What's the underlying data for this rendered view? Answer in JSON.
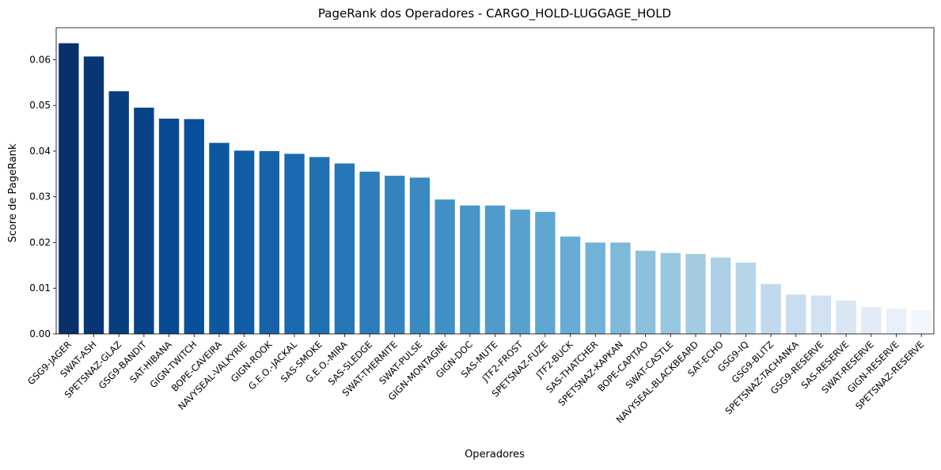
{
  "chart_data": {
    "type": "bar",
    "title": "PageRank dos Operadores - CARGO_HOLD-LUGGAGE_HOLD",
    "xlabel": "Operadores",
    "ylabel": "Score de PageRank",
    "ylim": [
      0,
      0.067
    ],
    "yticks": [
      "0.00",
      "0.01",
      "0.02",
      "0.03",
      "0.04",
      "0.05",
      "0.06"
    ],
    "grid": false,
    "legend": "none",
    "palette": "Blues_r",
    "categories": [
      "GSG9-JAGER",
      "SWAT-ASH",
      "SPETSNAZ-GLAZ",
      "GSG9-BANDIT",
      "SAT-HIBANA",
      "GIGN-TWITCH",
      "BOPE-CAVEIRA",
      "NAVYSEAL-VALKYRIE",
      "GIGN-ROOK",
      "G.E.O.-JACKAL",
      "SAS-SMOKE",
      "G.E.O.-MIRA",
      "SAS-SLEDGE",
      "SWAT-THERMITE",
      "SWAT-PULSE",
      "GIGN-MONTAGNE",
      "GIGN-DOC",
      "SAS-MUTE",
      "JTF2-FROST",
      "SPETSNAZ-FUZE",
      "JTF2-BUCK",
      "SAS-THATCHER",
      "SPETSNAZ-KAPKAN",
      "BOPE-CAPITAO",
      "SWAT-CASTLE",
      "NAVYSEAL-BLACKBEARD",
      "SAT-ECHO",
      "GSG9-IQ",
      "GSG9-BLITZ",
      "SPETSNAZ-TACHANKA",
      "GSG9-RESERVE",
      "SAS-RESERVE",
      "SWAT-RESERVE",
      "GIGN-RESERVE",
      "SPETSNAZ-RESERVE"
    ],
    "values": [
      0.0636,
      0.0607,
      0.0531,
      0.0495,
      0.0471,
      0.047,
      0.0418,
      0.0401,
      0.04,
      0.0394,
      0.0387,
      0.0373,
      0.0355,
      0.0346,
      0.0342,
      0.0294,
      0.0281,
      0.0281,
      0.0272,
      0.0267,
      0.0213,
      0.02,
      0.02,
      0.0182,
      0.0177,
      0.0175,
      0.0167,
      0.0156,
      0.0109,
      0.0086,
      0.0084,
      0.0073,
      0.0059,
      0.0056,
      0.0052
    ]
  }
}
